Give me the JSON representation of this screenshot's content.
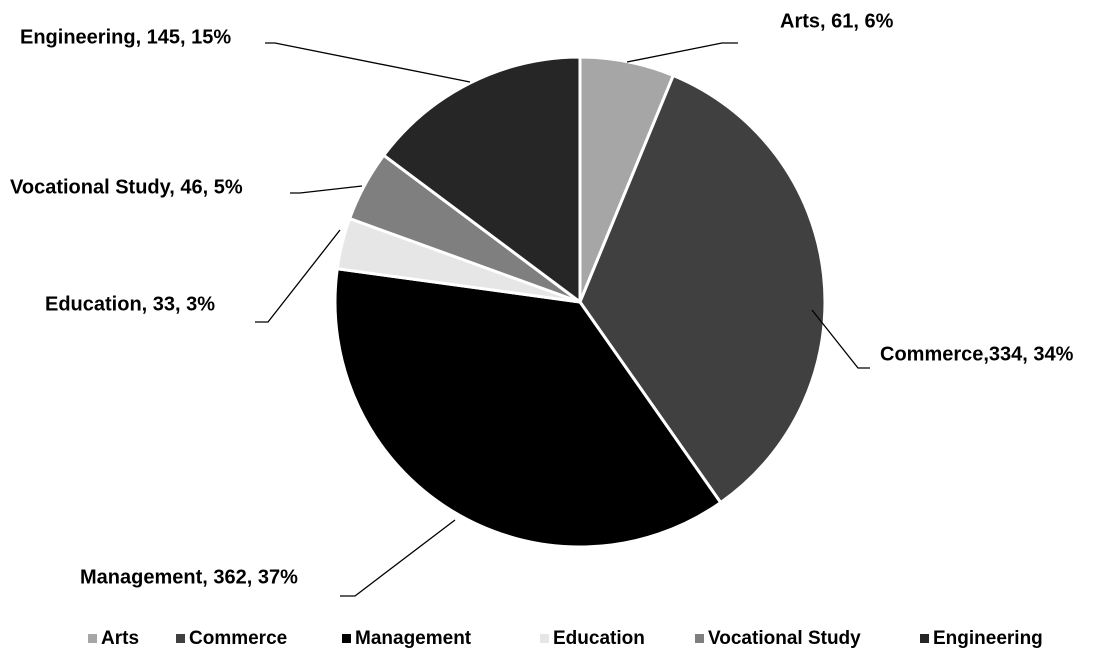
{
  "chart_data": {
    "type": "pie",
    "categories": [
      "Arts",
      "Commerce",
      "Management",
      "Education",
      "Vocational Study",
      "Engineering"
    ],
    "values": [
      61,
      334,
      362,
      33,
      46,
      145
    ],
    "value_labels": [
      "Arts, 61, 6%",
      "Commerce,334, 34%",
      "Management, 362, 37%",
      "Education, 33, 3%",
      "Vocational Study, 46, 5%",
      "Engineering, 145, 15%"
    ],
    "colors": [
      "#a6a6a6",
      "#404040",
      "#000000",
      "#e6e6e6",
      "#7f7f7f",
      "#262626"
    ],
    "legend": "bottom"
  }
}
